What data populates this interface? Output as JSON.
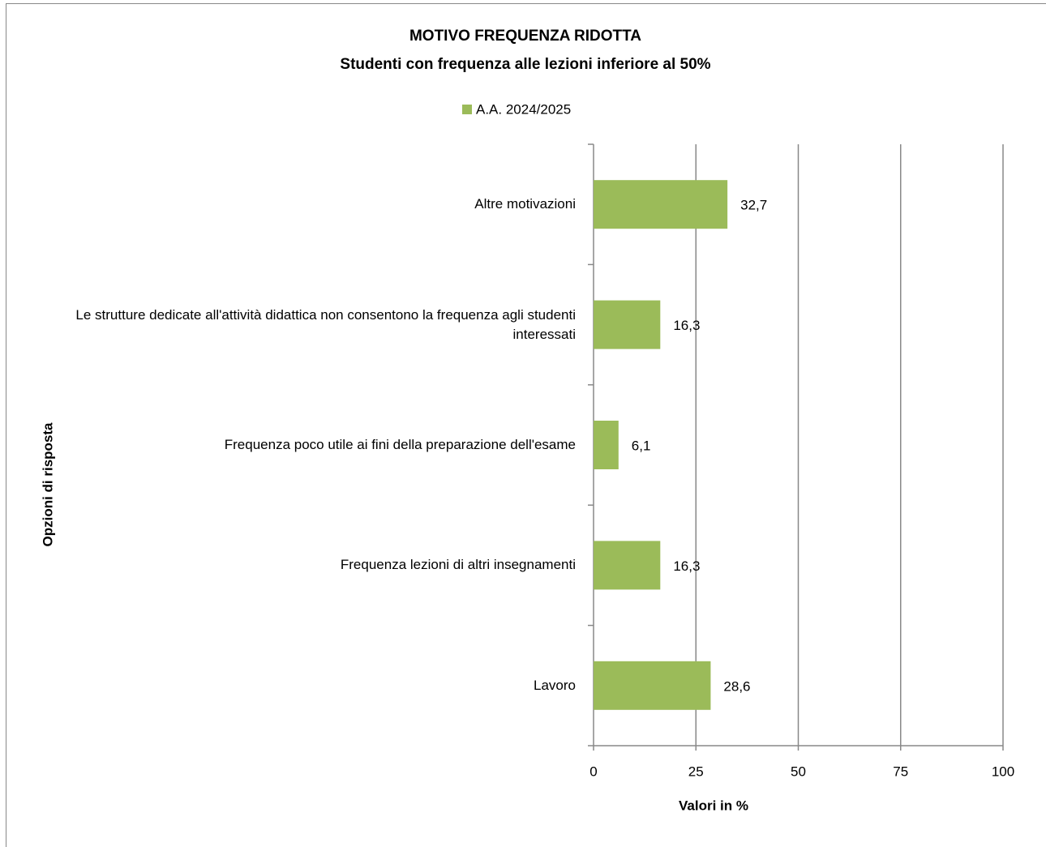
{
  "chart_data": {
    "type": "barh",
    "title": "MOTIVO FREQUENZA RIDOTTA",
    "subtitle": "Studenti con frequenza alle lezioni  inferiore  al 50%",
    "x_label": "Valori in %",
    "y_label": "Opzioni di risposta",
    "categories": [
      "Altre motivazioni",
      "Le strutture dedicate all'attività didattica non consentono la frequenza agli studenti interessati",
      "Frequenza poco utile ai fini della preparazione dell'esame",
      "Frequenza lezioni di altri insegnamenti",
      "Lavoro"
    ],
    "series": [
      {
        "name": "A.A. 2024/2025",
        "color": "#9bbb59",
        "values": [
          32.7,
          16.3,
          6.1,
          16.3,
          28.6
        ],
        "value_labels": [
          "32,7",
          "16,3",
          "6,1",
          "16,3",
          "28,6"
        ]
      }
    ],
    "xlim": [
      0,
      100
    ],
    "xticks": [
      0,
      25,
      50,
      75,
      100
    ],
    "grid": true,
    "legend": "top"
  }
}
